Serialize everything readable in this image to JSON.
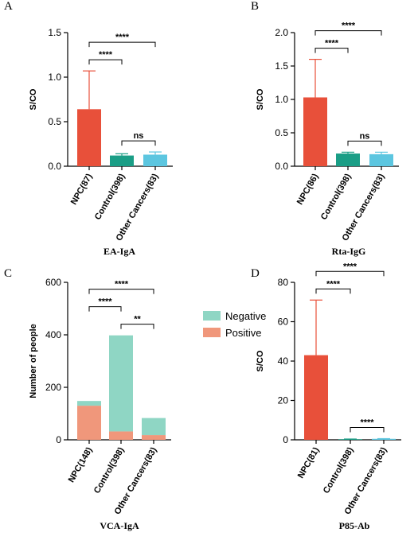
{
  "chart_data": [
    {
      "type": "bar",
      "panel": "A",
      "title": "EA-IgA",
      "y_label": "S/CO",
      "categories": [
        "NPC(87)",
        "Control(398)",
        "Other Cancers(83)"
      ],
      "values": [
        0.64,
        0.12,
        0.13
      ],
      "errors": [
        0.43,
        0.02,
        0.03
      ],
      "colors": [
        "#e8503a",
        "#1a9e86",
        "#5cc6e0"
      ],
      "ylim": [
        0,
        1.5
      ],
      "yticks": [
        {
          "value": 0,
          "label": "0.0"
        },
        {
          "value": 0.5,
          "label": "0.5"
        },
        {
          "value": 1,
          "label": "1.0"
        },
        {
          "value": 1.5,
          "label": "1.5"
        }
      ],
      "annotations": [
        {
          "text": "ns",
          "between": [
            "Control(398)",
            "Other Cancers(83)"
          ]
        },
        {
          "text": "****",
          "between": [
            "NPC(87)",
            "Control(398)"
          ]
        },
        {
          "text": "****",
          "between": [
            "NPC(87)",
            "Other Cancers(83)"
          ]
        }
      ]
    },
    {
      "type": "bar",
      "panel": "B",
      "title": "Rta-IgG",
      "y_label": "S/CO",
      "categories": [
        "NPC(86)",
        "Control(398)",
        "Other Cancers(83)"
      ],
      "values": [
        1.03,
        0.19,
        0.18
      ],
      "errors": [
        0.57,
        0.02,
        0.03
      ],
      "colors": [
        "#e8503a",
        "#1a9e86",
        "#5cc6e0"
      ],
      "ylim": [
        0,
        2
      ],
      "yticks": [
        {
          "value": 0,
          "label": "0.0"
        },
        {
          "value": 0.5,
          "label": "0.5"
        },
        {
          "value": 1,
          "label": "1.0"
        },
        {
          "value": 1.5,
          "label": "1.5"
        },
        {
          "value": 2,
          "label": "2.0"
        }
      ],
      "annotations": [
        {
          "text": "ns",
          "between": [
            "Control(398)",
            "Other Cancers(83)"
          ]
        },
        {
          "text": "****",
          "between": [
            "NPC(86)",
            "Control(398)"
          ]
        },
        {
          "text": "****",
          "between": [
            "NPC(86)",
            "Other Cancers(83)"
          ]
        }
      ]
    },
    {
      "type": "stacked_bar",
      "panel": "C",
      "title": "VCA-IgA",
      "y_label": "Number of people",
      "categories": [
        "NPC(148)",
        "Control(398)",
        "Other Cancers(83)"
      ],
      "series": [
        {
          "name": "Positive",
          "color": "#f0977b",
          "values": [
            130,
            32,
            18
          ]
        },
        {
          "name": "Negative",
          "color": "#8fd6c4",
          "values": [
            18,
            366,
            65
          ]
        }
      ],
      "ylim": [
        0,
        600
      ],
      "yticks": [
        0,
        200,
        400,
        600
      ],
      "annotations": [
        {
          "text": "**",
          "between": [
            "Control(398)",
            "Other Cancers(83)"
          ]
        },
        {
          "text": "****",
          "between": [
            "NPC(148)",
            "Control(398)"
          ]
        },
        {
          "text": "****",
          "between": [
            "NPC(148)",
            "Other Cancers(83)"
          ]
        }
      ]
    },
    {
      "type": "bar",
      "panel": "D",
      "title": "P85-Ab",
      "y_label": "S/CO",
      "categories": [
        "NPC(81)",
        "Control(398)",
        "Other Cancers(83)"
      ],
      "values": [
        43,
        0.3,
        0.5
      ],
      "errors": [
        28,
        0.1,
        0.1
      ],
      "colors": [
        "#e8503a",
        "#1a9e86",
        "#5cc6e0"
      ],
      "ylim": [
        0,
        80
      ],
      "yticks": [
        0,
        20,
        40,
        60,
        80
      ],
      "annotations": [
        {
          "text": "****",
          "between": [
            "Control(398)",
            "Other Cancers(83)"
          ]
        },
        {
          "text": "****",
          "between": [
            "NPC(81)",
            "Control(398)"
          ]
        },
        {
          "text": "****",
          "between": [
            "NPC(81)",
            "Other Cancers(83)"
          ]
        }
      ]
    }
  ]
}
